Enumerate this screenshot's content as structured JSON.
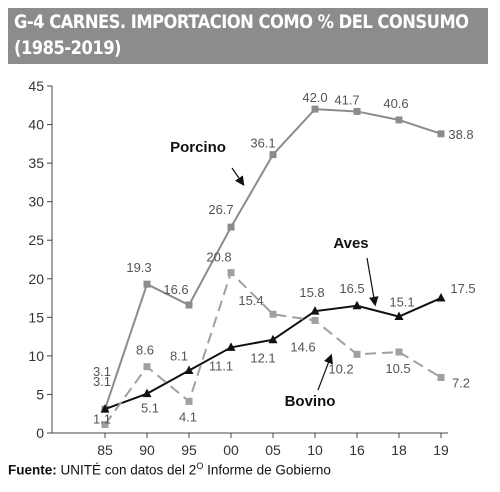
{
  "title_line1": "G-4  CARNES. IMPORTACION COMO % DEL CONSUMO",
  "title_line2": "(1985-2019)",
  "source": {
    "label": "Fuente:",
    "text_before": " UNITÉ con datos del 2",
    "superscript": "O",
    "text_after": " Informe de Gobierno"
  },
  "chart_data": {
    "type": "line",
    "categories": [
      "85",
      "90",
      "95",
      "00",
      "05",
      "10",
      "16",
      "18",
      "19"
    ],
    "ylim": [
      0,
      45
    ],
    "yticks": [
      0,
      5,
      10,
      15,
      20,
      25,
      30,
      35,
      40,
      45
    ],
    "grid": false,
    "series": [
      {
        "name": "Porcino",
        "values": [
          3.1,
          19.3,
          16.6,
          26.7,
          36.1,
          42.0,
          41.7,
          40.6,
          38.8
        ],
        "labels": [
          "3.1",
          "19.3",
          "16.6",
          "26.7",
          "36.1",
          "42.0",
          "41.7",
          "40.6",
          "38.8"
        ],
        "color": "#8c8c8c",
        "style": "solid",
        "marker": "square"
      },
      {
        "name": "Aves",
        "values": [
          3.1,
          5.1,
          8.1,
          11.1,
          12.1,
          15.8,
          16.5,
          15.1,
          17.5
        ],
        "labels": [
          "3.1",
          "5.1",
          "8.1",
          "11.1",
          "12.1",
          "15.8",
          "16.5",
          "15.1",
          "17.5"
        ],
        "color": "#111111",
        "style": "solid",
        "marker": "triangle"
      },
      {
        "name": "Bovino",
        "values": [
          1.1,
          8.6,
          4.1,
          20.8,
          15.4,
          14.6,
          10.2,
          10.5,
          7.2
        ],
        "labels": [
          "1.1",
          "8.6",
          "4.1",
          "20.8",
          "15.4",
          "14.6",
          "10.2",
          "10.5",
          "7.2"
        ],
        "color": "#a0a0a0",
        "style": "dashed",
        "marker": "square"
      }
    ]
  }
}
